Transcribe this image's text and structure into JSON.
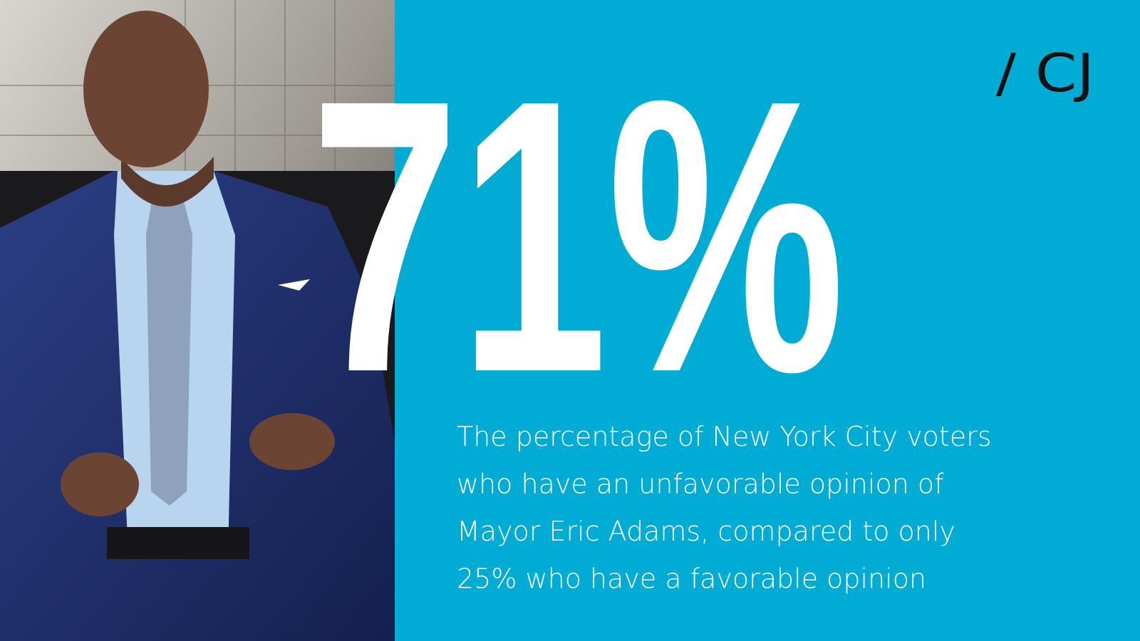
{
  "logo": "/ CJ",
  "headline_stat": "71%",
  "caption_lines": [
    "The percentage of New York City voters",
    "who have an unfavorable opinion of",
    "Mayor Eric Adams, compared to only",
    "25% who have a favorable opinion"
  ]
}
